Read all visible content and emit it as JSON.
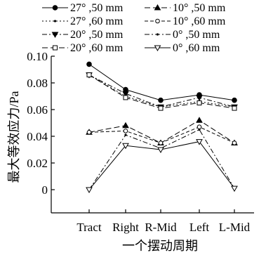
{
  "chart_data": {
    "type": "line",
    "title": "",
    "xlabel": "一个摆动周期",
    "ylabel": "最大等效应力/Pa",
    "categories": [
      "Tract",
      "Right",
      "R-Mid",
      "Left",
      "L-Mid"
    ],
    "ylim": [
      0,
      0.1
    ],
    "yticks": [
      0,
      0.02,
      0.04,
      0.06,
      0.08,
      0.1
    ],
    "ytick_labels": [
      "0",
      "0.02",
      "0.04",
      "0.06",
      "0.08",
      "0.10"
    ],
    "grid": false,
    "legend_position": "top",
    "series": [
      {
        "name": "27° ,50 mm",
        "marker": "filled-circle",
        "dash": "solid",
        "values": [
          0.094,
          0.075,
          0.067,
          0.071,
          0.067
        ]
      },
      {
        "name": "10° ,50 mm",
        "marker": "filled-triangle-up",
        "dash": "longdash",
        "values": [
          0.043,
          0.048,
          0.035,
          0.052,
          0.035
        ]
      },
      {
        "name": "27° ,60 mm",
        "marker": "small-dot",
        "dash": "dot",
        "values": [
          0.086,
          0.07,
          0.062,
          0.066,
          0.062
        ]
      },
      {
        "name": "10° ,60 mm",
        "marker": "open-circle",
        "dash": "shortdash",
        "values": [
          0.043,
          0.044,
          0.035,
          0.047,
          0.035
        ]
      },
      {
        "name": "20° ,50 mm",
        "marker": "filled-triangle-down",
        "dash": "dashdot",
        "values": [
          0.086,
          0.072,
          0.062,
          0.069,
          0.062
        ]
      },
      {
        "name": "0° ,50 mm",
        "marker": "small-dot",
        "dash": "dashdot",
        "values": [
          0.0,
          0.041,
          0.031,
          0.045,
          0.001
        ]
      },
      {
        "name": "20° ,60 mm",
        "marker": "open-square",
        "dash": "longdash",
        "values": [
          0.086,
          0.069,
          0.061,
          0.065,
          0.061
        ]
      },
      {
        "name": "0° ,60 mm",
        "marker": "open-triangle-down",
        "dash": "solid",
        "values": [
          0.0,
          0.033,
          0.03,
          0.036,
          0.001
        ]
      }
    ]
  }
}
